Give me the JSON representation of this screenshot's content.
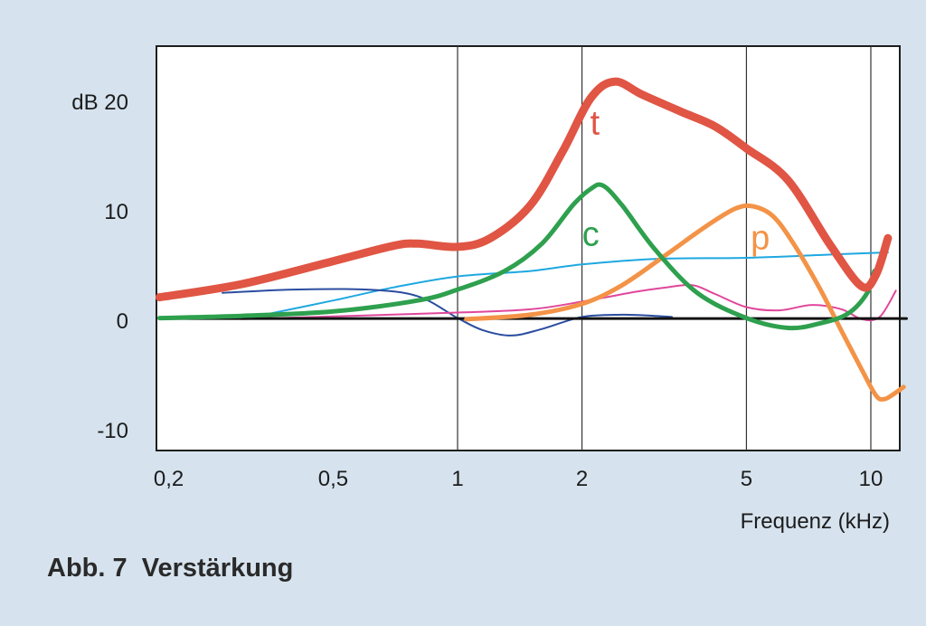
{
  "caption": "Abb. 7  Verstärkung",
  "chart_data": {
    "type": "line",
    "title": "",
    "xlabel": "Frequenz (kHz)",
    "ylabel": "dB",
    "x_scale": "log",
    "xlim": [
      0.19,
      12.2
    ],
    "ylim": [
      -11,
      25
    ],
    "grid": "vertical lines at 1, 2, 5, 10 kHz",
    "x_ticks": [
      {
        "value": 0.2,
        "label": "0,2"
      },
      {
        "value": 0.5,
        "label": "0,5"
      },
      {
        "value": 1,
        "label": "1"
      },
      {
        "value": 2,
        "label": "2"
      },
      {
        "value": 5,
        "label": "5"
      },
      {
        "value": 10,
        "label": "10"
      }
    ],
    "y_ticks": [
      {
        "value": 20,
        "label": "dB 20"
      },
      {
        "value": 10,
        "label": "10"
      },
      {
        "value": 0,
        "label": "0"
      },
      {
        "value": -10,
        "label": "-10"
      }
    ],
    "vlines": [
      1,
      2,
      5,
      10
    ],
    "series": [
      {
        "name": "t",
        "color": "#e05544",
        "width": 9,
        "label_at": [
          2.15,
          17
        ],
        "points": [
          [
            0.19,
            2.1
          ],
          [
            0.3,
            3.3
          ],
          [
            0.5,
            5.4
          ],
          [
            0.7,
            6.8
          ],
          [
            0.8,
            7.0
          ],
          [
            1.0,
            6.7
          ],
          [
            1.2,
            7.5
          ],
          [
            1.5,
            10.5
          ],
          [
            1.8,
            15.5
          ],
          [
            2.1,
            20.3
          ],
          [
            2.4,
            21.8
          ],
          [
            2.8,
            20.6
          ],
          [
            3.5,
            19.0
          ],
          [
            4.2,
            17.7
          ],
          [
            5.0,
            15.7
          ],
          [
            6.3,
            12.8
          ],
          [
            8.0,
            6.8
          ],
          [
            9.5,
            3.1
          ],
          [
            10.3,
            4.2
          ],
          [
            11.0,
            7.5
          ]
        ]
      },
      {
        "name": "c",
        "color": "#2ea04e",
        "width": 5,
        "label_at": [
          2.1,
          6.8
        ],
        "points": [
          [
            0.19,
            0.2
          ],
          [
            0.3,
            0.4
          ],
          [
            0.5,
            0.8
          ],
          [
            0.8,
            1.8
          ],
          [
            1.0,
            2.8
          ],
          [
            1.3,
            4.5
          ],
          [
            1.6,
            7.0
          ],
          [
            1.9,
            10.5
          ],
          [
            2.1,
            12.0
          ],
          [
            2.25,
            12.3
          ],
          [
            2.5,
            10.5
          ],
          [
            3.0,
            6.5
          ],
          [
            3.8,
            2.5
          ],
          [
            5.0,
            0.2
          ],
          [
            6.3,
            -0.7
          ],
          [
            7.5,
            -0.3
          ],
          [
            8.8,
            0.6
          ],
          [
            9.8,
            2.5
          ],
          [
            10.2,
            4.5
          ]
        ]
      },
      {
        "name": "p",
        "color": "#f39347",
        "width": 5,
        "label_at": [
          5.4,
          6.5
        ],
        "points": [
          [
            1.05,
            0.1
          ],
          [
            1.5,
            0.5
          ],
          [
            2.0,
            1.5
          ],
          [
            2.5,
            3.2
          ],
          [
            3.2,
            6.0
          ],
          [
            4.0,
            8.6
          ],
          [
            4.7,
            10.2
          ],
          [
            5.2,
            10.4
          ],
          [
            5.8,
            9.5
          ],
          [
            6.5,
            7.0
          ],
          [
            7.5,
            3.0
          ],
          [
            8.5,
            -1.0
          ],
          [
            9.5,
            -4.5
          ],
          [
            10.3,
            -6.9
          ],
          [
            10.8,
            -7.2
          ],
          [
            11.4,
            -6.7
          ],
          [
            12.0,
            -6.1
          ]
        ]
      },
      {
        "name": "",
        "color": "#1ea8e0",
        "width": 2,
        "points": [
          [
            0.33,
            0.4
          ],
          [
            0.5,
            1.8
          ],
          [
            0.7,
            3.0
          ],
          [
            1.0,
            4.0
          ],
          [
            1.5,
            4.5
          ],
          [
            2.0,
            5.1
          ],
          [
            3.0,
            5.6
          ],
          [
            5.0,
            5.7
          ],
          [
            8.0,
            6.0
          ],
          [
            11.0,
            6.2
          ]
        ]
      },
      {
        "name": "",
        "color": "#2b4da0",
        "width": 2,
        "points": [
          [
            0.27,
            2.5
          ],
          [
            0.4,
            2.8
          ],
          [
            0.6,
            2.8
          ],
          [
            0.8,
            2.2
          ],
          [
            1.0,
            0.2
          ],
          [
            1.15,
            -0.9
          ],
          [
            1.35,
            -1.4
          ],
          [
            1.6,
            -0.8
          ],
          [
            2.0,
            0.3
          ],
          [
            2.5,
            0.5
          ],
          [
            3.0,
            0.4
          ],
          [
            3.3,
            0.3
          ]
        ]
      },
      {
        "name": "",
        "color": "#e0479b",
        "width": 2,
        "points": [
          [
            0.3,
            0.1
          ],
          [
            1.0,
            0.7
          ],
          [
            1.5,
            1.0
          ],
          [
            2.0,
            1.7
          ],
          [
            2.7,
            2.6
          ],
          [
            3.2,
            3.0
          ],
          [
            3.7,
            3.2
          ],
          [
            4.2,
            2.4
          ],
          [
            5.0,
            1.2
          ],
          [
            6.0,
            0.9
          ],
          [
            7.2,
            1.4
          ],
          [
            8.5,
            1.0
          ],
          [
            9.5,
            0.1
          ],
          [
            10.5,
            0.3
          ],
          [
            11.5,
            2.7
          ]
        ]
      },
      {
        "name": "",
        "color": "#111111",
        "width": 3,
        "points": [
          [
            0.19,
            0.15
          ],
          [
            12.2,
            0.15
          ]
        ]
      }
    ]
  }
}
